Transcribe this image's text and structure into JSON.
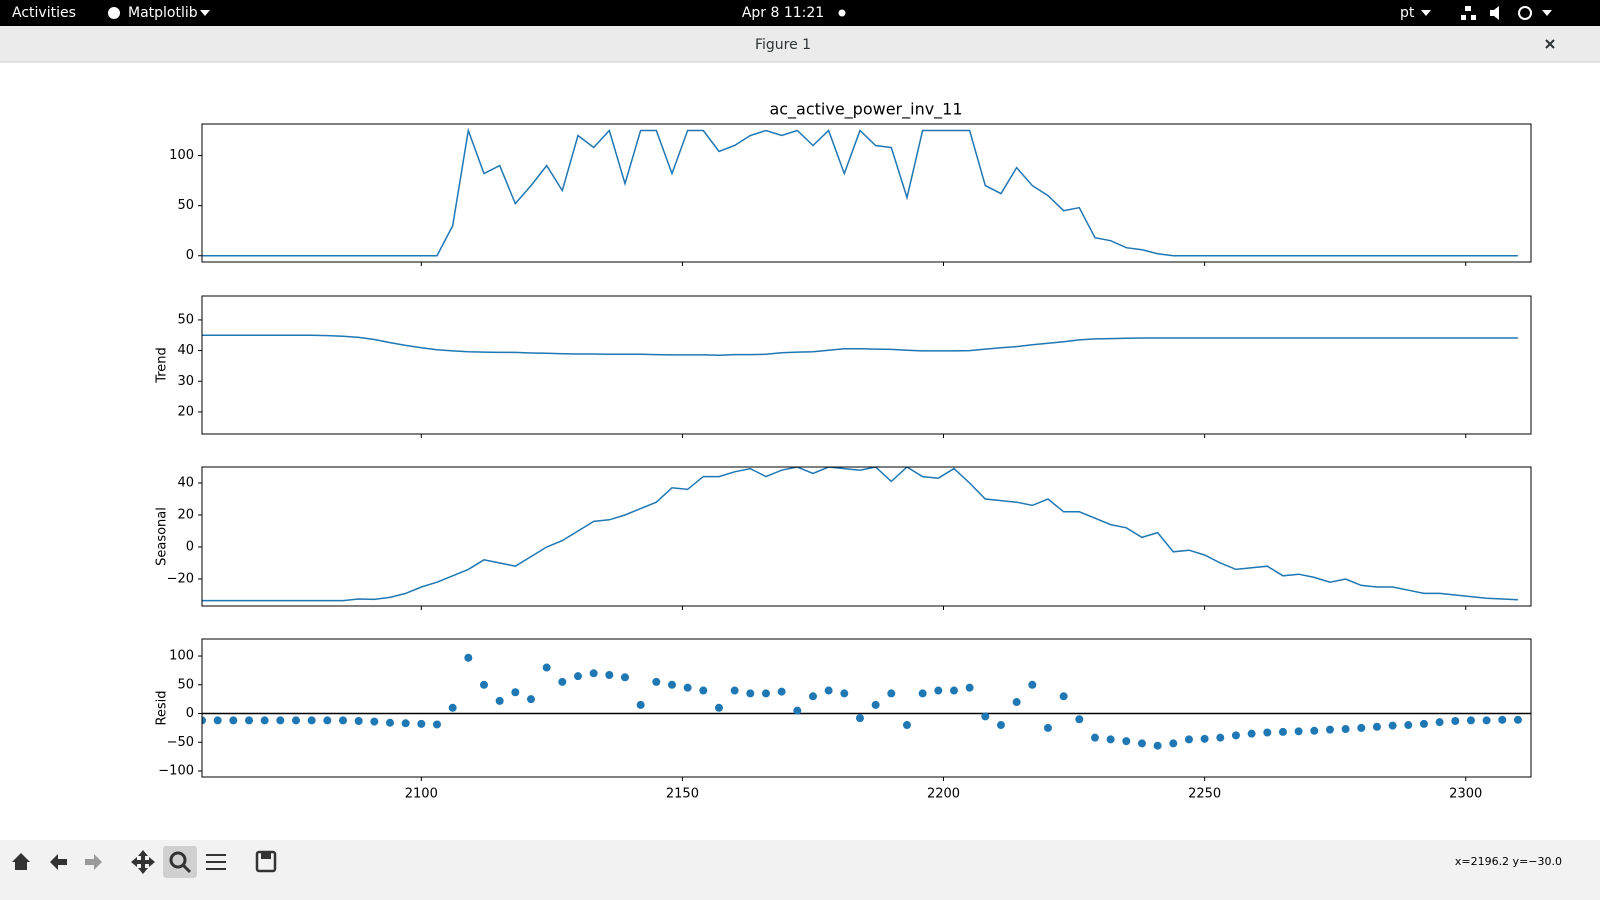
{
  "topbar": {
    "activities": "Activities",
    "app": "Matplotlib",
    "clock": "Apr 8  11:21",
    "lang": "pt"
  },
  "window": {
    "title": "Figure 1"
  },
  "chart_data": {
    "type": "decomposition",
    "title": "ac_active_power_inv_11",
    "x": [
      2058,
      2061,
      2064,
      2067,
      2070,
      2073,
      2076,
      2079,
      2082,
      2085,
      2088,
      2091,
      2094,
      2097,
      2100,
      2103,
      2106,
      2109,
      2112,
      2115,
      2118,
      2121,
      2124,
      2127,
      2130,
      2133,
      2136,
      2139,
      2142,
      2145,
      2148,
      2151,
      2154,
      2157,
      2160,
      2163,
      2166,
      2169,
      2172,
      2175,
      2178,
      2181,
      2184,
      2187,
      2190,
      2193,
      2196,
      2199,
      2202,
      2205,
      2208,
      2211,
      2214,
      2217,
      2220,
      2223,
      2226,
      2229,
      2232,
      2235,
      2238,
      2241,
      2244,
      2247,
      2250,
      2253,
      2256,
      2259,
      2262,
      2265,
      2268,
      2271,
      2274,
      2277,
      2280,
      2283,
      2286,
      2289,
      2292,
      2295,
      2298,
      2301,
      2304,
      2307,
      2310
    ],
    "xlim": [
      2058,
      2312.5
    ],
    "xticks": [
      2100,
      2150,
      2200,
      2250,
      2300
    ],
    "panels": [
      {
        "type": "line",
        "color": "#1f77b4",
        "ylim": [
          -6.25,
          131.5
        ],
        "yticks": [
          0,
          50,
          100
        ],
        "values": [
          0,
          0,
          0,
          0,
          0,
          0,
          0,
          0,
          0,
          0,
          0,
          0,
          0,
          0,
          0,
          0,
          30,
          125,
          82,
          90,
          52,
          70,
          90,
          65,
          120,
          108,
          125,
          72,
          125,
          125,
          82,
          125,
          125,
          104,
          110,
          120,
          125,
          120,
          125,
          110,
          125,
          82,
          125,
          110,
          108,
          58,
          125,
          125,
          125,
          125,
          70,
          62,
          88,
          70,
          60,
          45,
          48,
          18,
          15,
          8,
          6,
          2,
          0,
          0,
          0,
          0,
          0,
          0,
          0,
          0,
          0,
          0,
          0,
          0,
          0,
          0,
          0,
          0,
          0,
          0,
          0,
          0,
          0,
          0,
          0
        ]
      },
      {
        "type": "line",
        "ylabel": "Trend",
        "color": "#1f77b4",
        "ylim": [
          12.8,
          57.8
        ],
        "yticks": [
          20,
          30,
          40,
          50
        ],
        "values": [
          45,
          45,
          45,
          45,
          45,
          45,
          45,
          45,
          44.9,
          44.7,
          44.3,
          43.6,
          42.6,
          41.7,
          40.9,
          40.3,
          39.9,
          39.6,
          39.5,
          39.4,
          39.4,
          39.2,
          39.1,
          39,
          38.9,
          38.9,
          38.8,
          38.8,
          38.8,
          38.7,
          38.6,
          38.6,
          38.6,
          38.5,
          38.7,
          38.7,
          38.8,
          39.3,
          39.5,
          39.6,
          40.1,
          40.6,
          40.6,
          40.5,
          40.4,
          40.1,
          39.9,
          39.9,
          39.9,
          40,
          40.5,
          40.9,
          41.3,
          41.9,
          42.4,
          42.9,
          43.5,
          43.8,
          43.9,
          44,
          44.1,
          44.1,
          44.1,
          44.1,
          44.1,
          44.1,
          44.1,
          44.1,
          44.1,
          44.1,
          44.1,
          44.1,
          44.1,
          44.1,
          44.1,
          44.1,
          44.1,
          44.1,
          44.1,
          44.1,
          44.1,
          44.1,
          44.1,
          44.1,
          44.1
        ]
      },
      {
        "type": "line",
        "ylabel": "Seasonal",
        "color": "#1f77b4",
        "ylim": [
          -36.9,
          50
        ],
        "yticks": [
          {
            "value": -20,
            "label": "−20"
          },
          0,
          20,
          40
        ],
        "values": [
          -33.5,
          -33.5,
          -33.5,
          -33.5,
          -33.5,
          -33.5,
          -33.5,
          -33.5,
          -33.5,
          -33.5,
          -32.5,
          -32.8,
          -31.5,
          -29,
          -25,
          -22,
          -18,
          -14,
          -8,
          -10,
          -12,
          -6,
          0,
          4,
          10,
          16,
          17,
          20,
          24,
          28,
          37,
          36,
          44,
          44,
          47,
          49,
          44,
          48,
          50,
          46,
          50,
          49,
          48,
          50,
          41,
          50,
          44,
          43,
          49,
          40,
          30,
          29,
          28,
          26,
          30,
          22,
          22,
          18,
          14,
          12,
          6,
          9,
          -3,
          -2,
          -5,
          -10,
          -14,
          -13,
          -12,
          -18,
          -17,
          -19,
          -22,
          -20,
          -24,
          -25,
          -25,
          -27,
          -29,
          -29,
          -30,
          -31,
          -32,
          -32.5,
          -33
        ]
      },
      {
        "type": "scatter",
        "ylabel": "Resid",
        "color": "#1f77b4",
        "ylim": [
          -110.4,
          129.6
        ],
        "yticks": [
          {
            "value": -100,
            "label": "−100"
          },
          {
            "value": -50,
            "label": "−50"
          },
          0,
          50,
          100
        ],
        "values": [
          -12,
          -12,
          -12,
          -12,
          -12,
          -12,
          -12,
          -12,
          -12,
          -12,
          -13,
          -14,
          -16,
          -17,
          -18,
          -19,
          10,
          97,
          50,
          22,
          37,
          25,
          80,
          55,
          65,
          70,
          67,
          63,
          15,
          55,
          50,
          45,
          40,
          10,
          40,
          35,
          35,
          38,
          5,
          30,
          40,
          35,
          -8,
          15,
          35,
          -20,
          35,
          40,
          40,
          45,
          -5,
          -20,
          20,
          50,
          -25,
          30,
          -10,
          -42,
          -45,
          -48,
          -52,
          -56,
          -52,
          -45,
          -44,
          -42,
          -38,
          -35,
          -33,
          -32,
          -31,
          -30,
          -28,
          -27,
          -25,
          -23,
          -21,
          -20,
          -18,
          -15,
          -13,
          -12,
          -12,
          -11,
          -11
        ]
      }
    ]
  },
  "statusbar": {
    "coords": "x=2196.2 y=−30.0"
  }
}
